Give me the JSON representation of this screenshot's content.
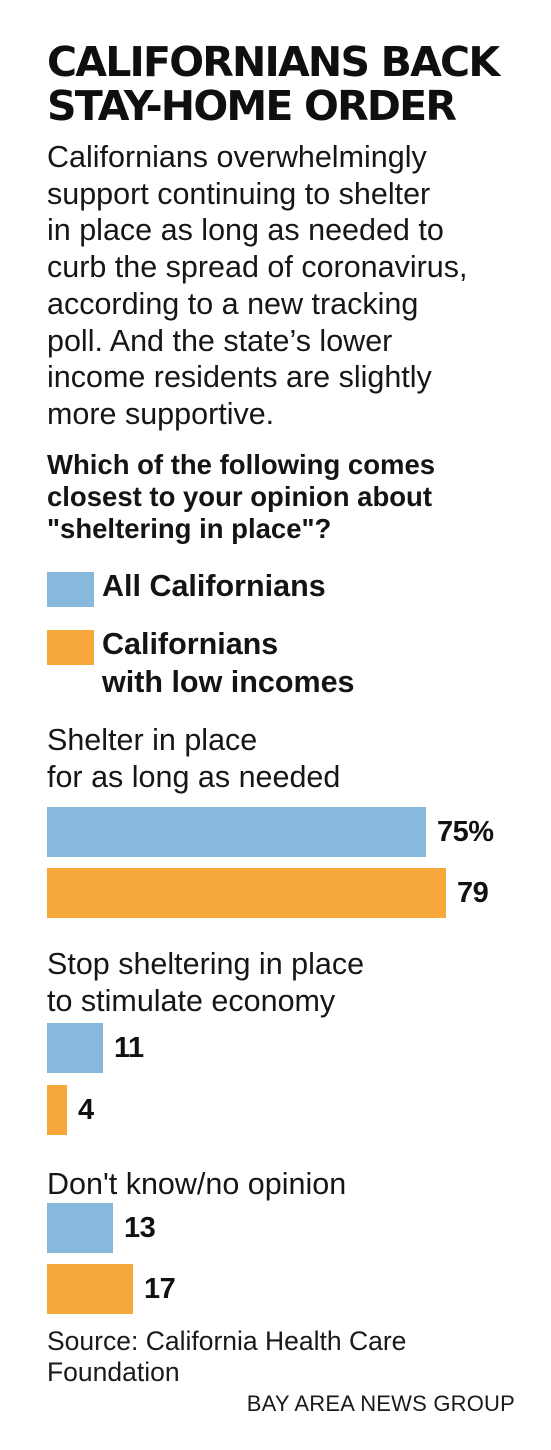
{
  "header": {
    "title_lines": [
      "CALIFORNIANS BACK",
      "STAY-HOME ORDER"
    ],
    "intro_lines": [
      "Californians overwhelmingly",
      "support continuing to shelter",
      "in place as long as needed to",
      "curb the spread of coronavirus,",
      "according to a new tracking",
      "poll. And the state’s lower",
      "income residents are slightly",
      "more supportive."
    ],
    "question_lines": [
      "Which of the following comes",
      "closest to your opinion about",
      "\"sheltering in place\"?"
    ]
  },
  "legend": {
    "items": [
      {
        "label_lines": [
          "All Californians"
        ],
        "color": "#88b8db"
      },
      {
        "label_lines": [
          "Californians",
          "with low incomes"
        ],
        "color": "#f7a83a"
      }
    ]
  },
  "chart_data": {
    "type": "bar",
    "orientation": "horizontal",
    "title": "CALIFORNIANS BACK STAY-HOME ORDER",
    "xlim": [
      0,
      100
    ],
    "grid": false,
    "legend_position": "top-left",
    "categories": [
      "Shelter in place for as long as needed",
      "Stop sheltering in place to stimulate economy",
      "Don't know/no opinion"
    ],
    "category_label_lines": [
      [
        "Shelter in place",
        "for as long as needed"
      ],
      [
        "Stop sheltering in place",
        "to stimulate economy"
      ],
      [
        "Don't know/no opinion"
      ]
    ],
    "series": [
      {
        "name": "All Californians",
        "color": "#88b8db",
        "values": [
          75,
          11,
          13
        ],
        "value_labels": [
          "75%",
          "11",
          "13"
        ]
      },
      {
        "name": "Californians with low incomes",
        "color": "#f7a83a",
        "values": [
          79,
          4,
          17
        ],
        "value_labels": [
          "79",
          "4",
          "17"
        ]
      }
    ]
  },
  "footer": {
    "source_lines": [
      "Source: California Health Care",
      "Foundation"
    ],
    "credit": "BAY AREA NEWS GROUP"
  }
}
